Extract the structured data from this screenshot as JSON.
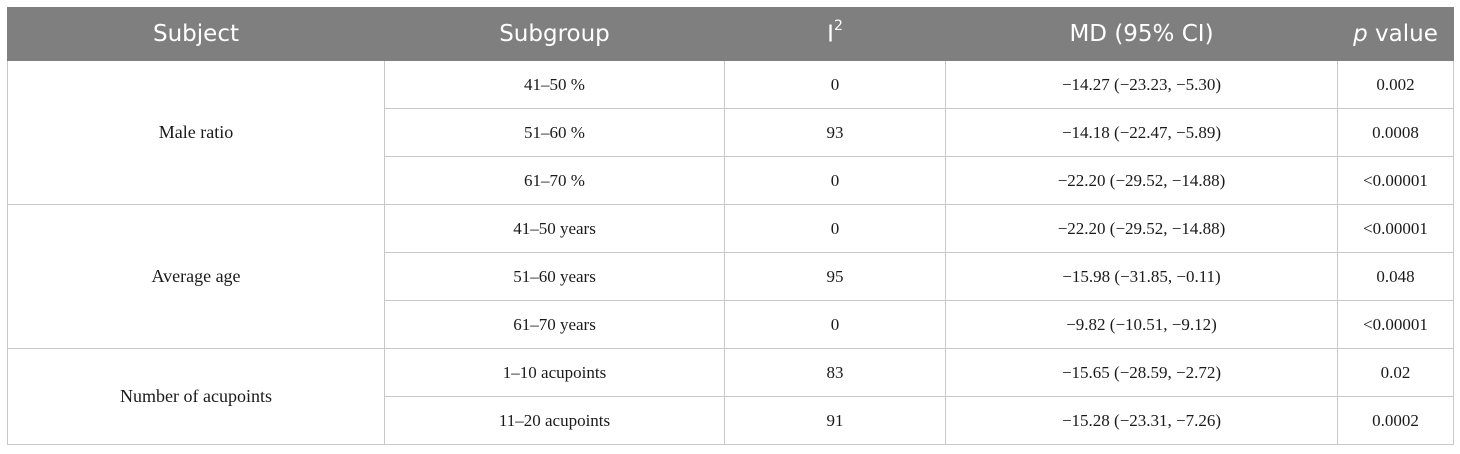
{
  "header": {
    "subject": "Subject",
    "subgroup": "Subgroup",
    "i2_base": "I",
    "i2_sup": "2",
    "md": "MD (95% CI)",
    "p_italic": "p",
    "p_rest": " value"
  },
  "groups": [
    {
      "subject": "Male ratio",
      "rows": [
        {
          "subgroup": "41–50 %",
          "i2": "0",
          "md": "−14.27 (−23.23, −5.30)",
          "p": "0.002"
        },
        {
          "subgroup": "51–60 %",
          "i2": "93",
          "md": "−14.18 (−22.47, −5.89)",
          "p": "0.0008"
        },
        {
          "subgroup": "61–70 %",
          "i2": "0",
          "md": "−22.20 (−29.52, −14.88)",
          "p": "<0.00001"
        }
      ]
    },
    {
      "subject": "Average age",
      "rows": [
        {
          "subgroup": "41–50 years",
          "i2": "0",
          "md": "−22.20 (−29.52, −14.88)",
          "p": "<0.00001"
        },
        {
          "subgroup": "51–60 years",
          "i2": "95",
          "md": "−15.98 (−31.85, −0.11)",
          "p": "0.048"
        },
        {
          "subgroup": "61–70 years",
          "i2": "0",
          "md": "−9.82 (−10.51, −9.12)",
          "p": "<0.00001"
        }
      ]
    },
    {
      "subject": "Number of acupoints",
      "rows": [
        {
          "subgroup": "1–10 acupoints",
          "i2": "83",
          "md": "−15.65 (−28.59, −2.72)",
          "p": "0.02"
        },
        {
          "subgroup": "11–20 acupoints",
          "i2": "91",
          "md": "−15.28 (−23.31, −7.26)",
          "p": "0.0002"
        }
      ]
    }
  ]
}
